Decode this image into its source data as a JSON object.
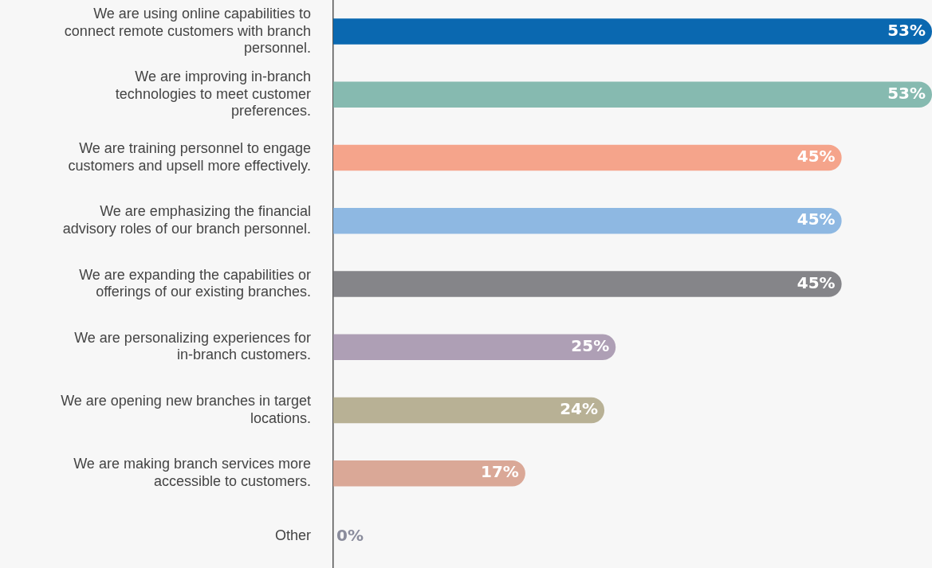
{
  "chart_data": {
    "type": "bar",
    "orientation": "horizontal",
    "categories": [
      "We are using online capabilities to connect remote customers with branch personnel.",
      "We are improving in-branch technologies to meet customer preferences.",
      "We are training personnel to engage customers and upsell more effectively.",
      "We are emphasizing the financial advisory roles of our branch personnel.",
      "We are expanding the capabilities or offerings of our existing branches.",
      "We are personalizing experiences for in-branch customers.",
      "We are opening new branches in target locations.",
      "We are making branch services more accessible to customers.",
      "Other"
    ],
    "values": [
      53,
      53,
      45,
      45,
      45,
      25,
      24,
      17,
      0
    ],
    "colors": [
      "#0a68b0",
      "#86bab0",
      "#f5a48b",
      "#8eb8e2",
      "#858589",
      "#ae9fb5",
      "#b8b195",
      "#daa897",
      "#8a8c9c"
    ],
    "value_labels": [
      "53%",
      "53%",
      "45%",
      "45%",
      "45%",
      "25%",
      "24%",
      "17%",
      "0%"
    ],
    "tick_labels": "y",
    "legend": false
  }
}
